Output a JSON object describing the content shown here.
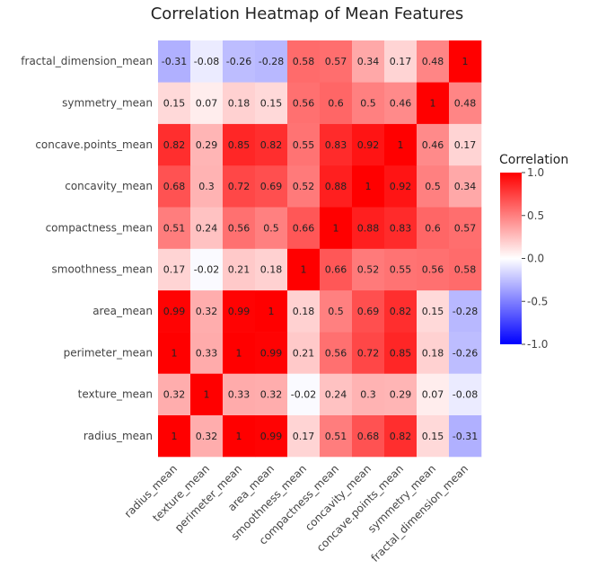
{
  "chart_data": {
    "type": "heatmap",
    "title": "Correlation Heatmap of Mean Features",
    "x_labels": [
      "radius_mean",
      "texture_mean",
      "perimeter_mean",
      "area_mean",
      "smoothness_mean",
      "compactness_mean",
      "concavity_mean",
      "concave.points_mean",
      "symmetry_mean",
      "fractal_dimension_mean"
    ],
    "y_labels": [
      "radius_mean",
      "texture_mean",
      "perimeter_mean",
      "area_mean",
      "smoothness_mean",
      "compactness_mean",
      "concavity_mean",
      "concave.points_mean",
      "symmetry_mean",
      "fractal_dimension_mean"
    ],
    "matrix": [
      [
        1,
        0.32,
        1,
        0.99,
        0.17,
        0.51,
        0.68,
        0.82,
        0.15,
        -0.31
      ],
      [
        0.32,
        1,
        0.33,
        0.32,
        -0.02,
        0.24,
        0.3,
        0.29,
        0.07,
        -0.08
      ],
      [
        1,
        0.33,
        1,
        0.99,
        0.21,
        0.56,
        0.72,
        0.85,
        0.18,
        -0.26
      ],
      [
        0.99,
        0.32,
        0.99,
        1,
        0.18,
        0.5,
        0.69,
        0.82,
        0.15,
        -0.28
      ],
      [
        0.17,
        -0.02,
        0.21,
        0.18,
        1,
        0.66,
        0.52,
        0.55,
        0.56,
        0.58
      ],
      [
        0.51,
        0.24,
        0.56,
        0.5,
        0.66,
        1,
        0.88,
        0.83,
        0.6,
        0.57
      ],
      [
        0.68,
        0.3,
        0.72,
        0.69,
        0.52,
        0.88,
        1,
        0.92,
        0.5,
        0.34
      ],
      [
        0.82,
        0.29,
        0.85,
        0.82,
        0.55,
        0.83,
        0.92,
        1,
        0.46,
        0.17
      ],
      [
        0.15,
        0.07,
        0.18,
        0.15,
        0.56,
        0.6,
        0.5,
        0.46,
        1,
        0.48
      ],
      [
        -0.31,
        -0.08,
        -0.26,
        -0.28,
        0.58,
        0.57,
        0.34,
        0.17,
        0.48,
        1
      ]
    ],
    "colorbar": {
      "title": "Correlation",
      "range": [
        -1,
        1
      ],
      "ticks": [
        "1.0",
        "0.5",
        "0.0",
        "-0.5",
        "-1.0"
      ],
      "colors": {
        "low": "#0000ff",
        "mid": "#ffffff",
        "high": "#ff0000"
      }
    }
  }
}
